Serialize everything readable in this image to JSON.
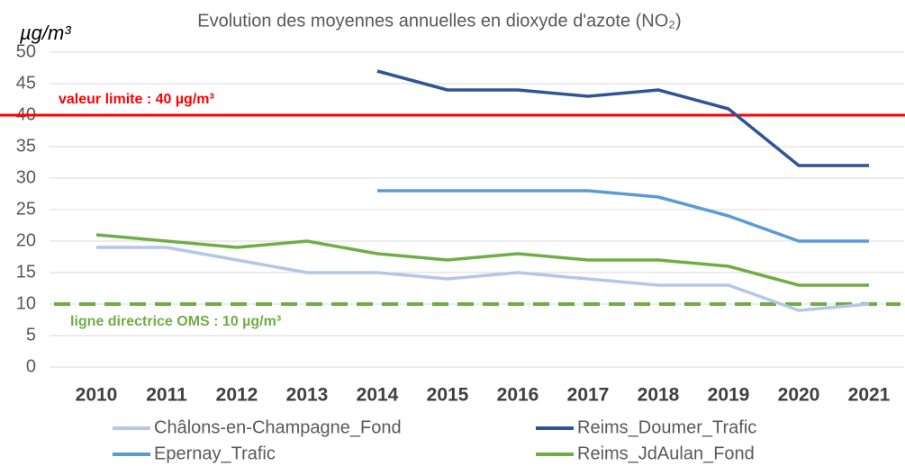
{
  "chart_data": {
    "type": "line",
    "title": "Evolution des moyennes annuelles en dioxyde d'azote (NO₂)",
    "y_label": "µg/m³",
    "categories": [
      "2010",
      "2011",
      "2012",
      "2013",
      "2014",
      "2015",
      "2016",
      "2017",
      "2018",
      "2019",
      "2020",
      "2021"
    ],
    "series": [
      {
        "name": "Châlons-en-Champagne_Fond",
        "color": "#b4c7e7",
        "values": [
          19,
          19,
          17,
          15,
          15,
          14,
          15,
          14,
          13,
          13,
          9,
          10
        ]
      },
      {
        "name": "Reims_Doumer_Trafic",
        "color": "#2f5597",
        "values": [
          null,
          null,
          null,
          null,
          47,
          44,
          44,
          43,
          44,
          41,
          32,
          32
        ]
      },
      {
        "name": "Epernay_Trafic",
        "color": "#5b9bd5",
        "values": [
          null,
          null,
          null,
          null,
          28,
          28,
          28,
          28,
          27,
          24,
          20,
          20
        ]
      },
      {
        "name": "Reims_JdAulan_Fond",
        "color": "#70ad47",
        "values": [
          21,
          20,
          19,
          20,
          18,
          17,
          18,
          17,
          17,
          16,
          13,
          13
        ]
      }
    ],
    "annotations": [
      {
        "text": "valeur limite : 40 µg/m³",
        "value": 40,
        "color": "#ff0000",
        "dashed": false
      },
      {
        "text": "ligne directrice OMS : 10 µg/m³",
        "value": 10,
        "color": "#70ad47",
        "dashed": true
      }
    ],
    "ylim": [
      0,
      50
    ],
    "yticks": [
      0,
      5,
      10,
      15,
      20,
      25,
      30,
      35,
      40,
      45,
      50
    ],
    "grid": true,
    "legend": "bottom"
  }
}
